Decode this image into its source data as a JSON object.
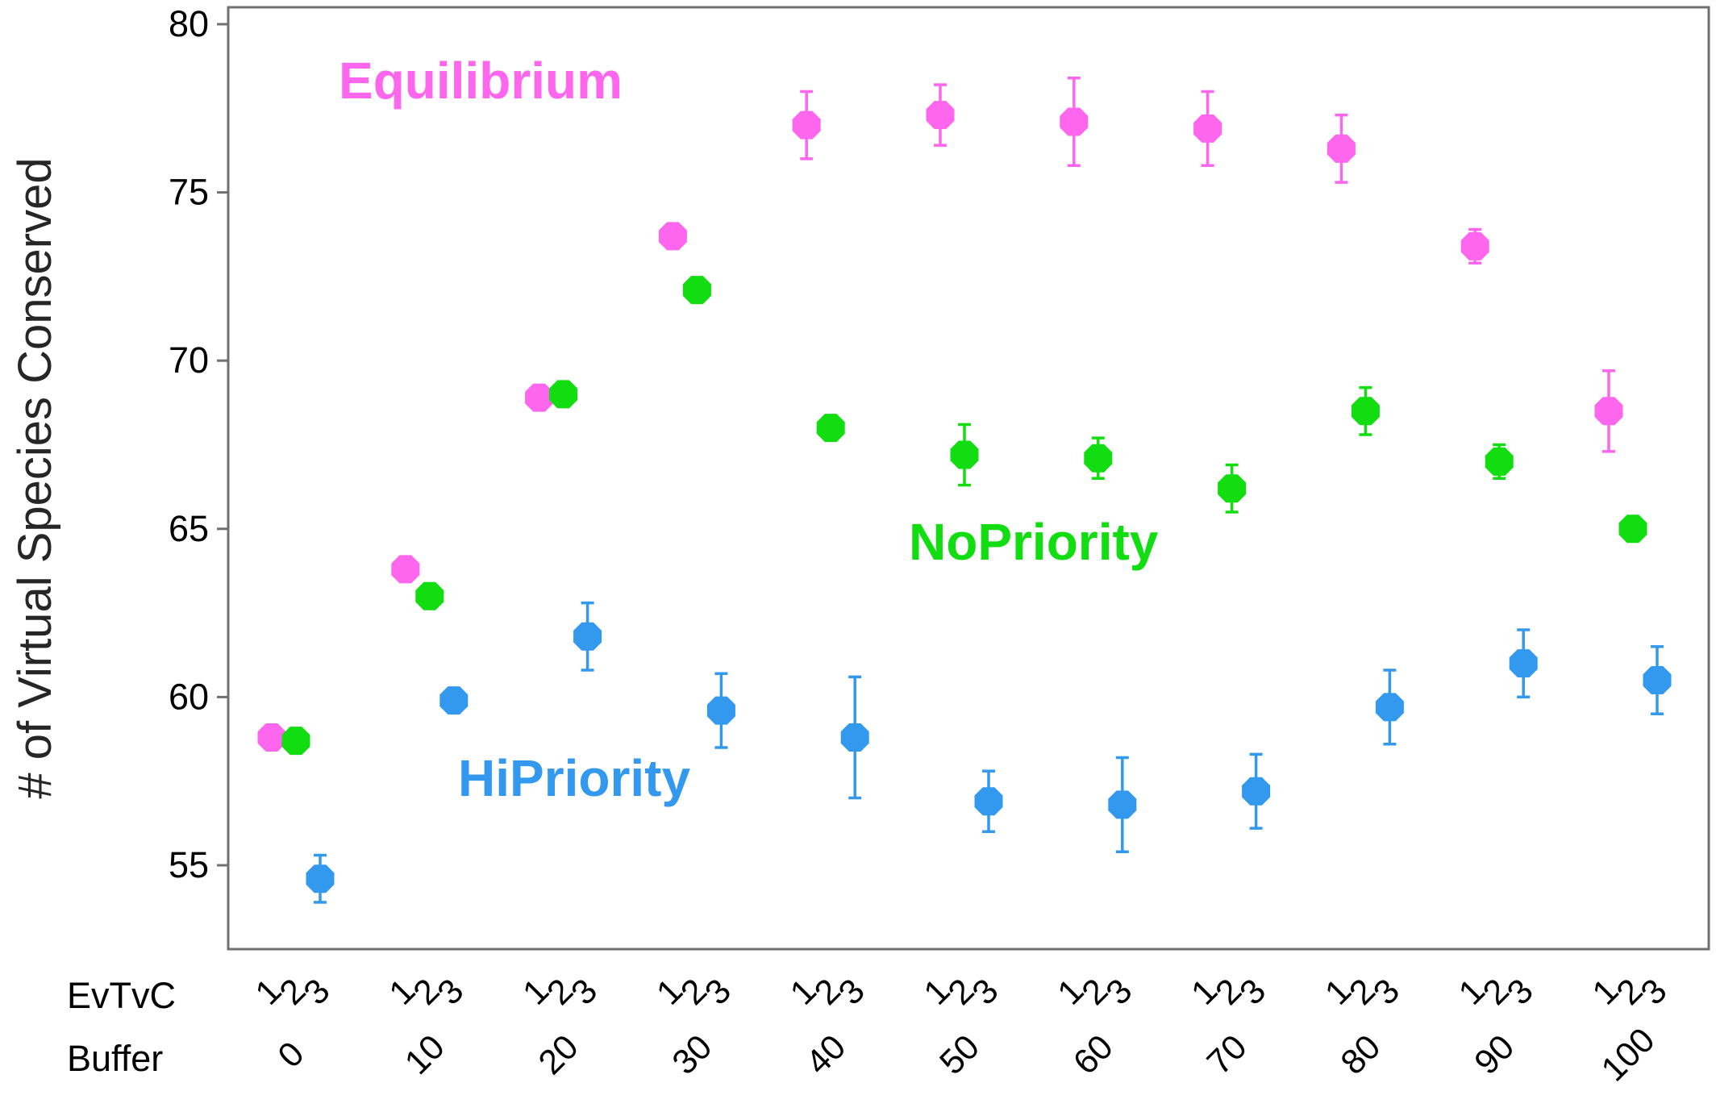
{
  "chart_data": {
    "type": "scatter",
    "title": "",
    "ylabel": "# of Virtual Species Conserved",
    "xlabel": "",
    "ylim": [
      52.5,
      80.3
    ],
    "y_ticks": [
      55,
      60,
      65,
      70,
      75,
      80
    ],
    "y_tick_labels": [
      "55",
      "60",
      "65",
      "70",
      "75",
      "80"
    ],
    "grid": false,
    "legend": "none; series names written inside plot",
    "x_row_labels": {
      "evtvc": "EvTvC",
      "buffer": "Buffer"
    },
    "evtvc_levels": [
      "1",
      "2",
      "3"
    ],
    "buffers": [
      "0",
      "10",
      "20",
      "30",
      "40",
      "50",
      "60",
      "70",
      "80",
      "90",
      "100"
    ],
    "series": [
      {
        "name": "Equilibrium",
        "evtvc": "1",
        "color": "#ff66ee",
        "label_position": "top-left",
        "values": [
          58.8,
          63.8,
          68.9,
          73.7,
          77.0,
          77.3,
          77.1,
          76.9,
          76.3,
          73.4,
          68.5
        ],
        "errors": [
          0.3,
          0.3,
          0.3,
          0.2,
          1.0,
          0.9,
          1.3,
          1.1,
          1.0,
          0.5,
          1.2
        ]
      },
      {
        "name": "NoPriority",
        "evtvc": "2",
        "color": "#11dd11",
        "label_position": "center-right",
        "values": [
          58.7,
          63.0,
          69.0,
          72.1,
          68.0,
          67.2,
          67.1,
          66.2,
          68.5,
          67.0,
          65.0
        ],
        "errors": [
          0.2,
          0.2,
          0.2,
          0.2,
          0.2,
          0.9,
          0.6,
          0.7,
          0.7,
          0.5,
          0.2
        ]
      },
      {
        "name": "HiPriority",
        "evtvc": "3",
        "color": "#3399ee",
        "label_position": "bottom-left",
        "values": [
          54.6,
          59.9,
          61.8,
          59.6,
          58.8,
          56.9,
          56.8,
          57.2,
          59.7,
          61.0,
          60.5
        ],
        "errors": [
          0.7,
          0.3,
          1.0,
          1.1,
          1.8,
          0.9,
          1.4,
          1.1,
          1.1,
          1.0,
          1.0
        ]
      }
    ]
  }
}
